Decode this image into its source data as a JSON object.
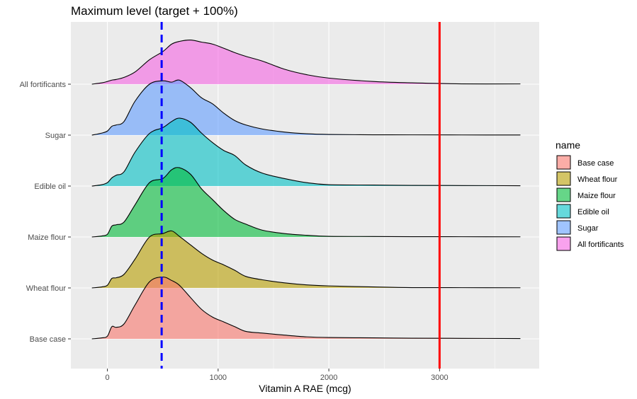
{
  "chart_data": {
    "type": "area",
    "subtype": "ridgeline-density",
    "title": "Maximum level (target + 100%)",
    "xlabel": "Vitamin A RAE (mcg)",
    "ylabel": "",
    "xlim": [
      -330,
      3900
    ],
    "x_ticks": [
      0,
      1000,
      2000,
      3000
    ],
    "x_tick_labels": [
      "0",
      "1000",
      "2000",
      "3000"
    ],
    "categories": [
      "Base case",
      "Wheat flour",
      "Maize flour",
      "Edible oil",
      "Sugar",
      "All fortificants"
    ],
    "grid": true,
    "reference_lines": [
      {
        "x": 490,
        "color": "#0000ff",
        "style": "dashed"
      },
      {
        "x": 3000,
        "color": "#ff0000",
        "style": "solid"
      }
    ],
    "legend": {
      "title": "name",
      "placement": "right",
      "entries": [
        "Base case",
        "Wheat flour",
        "Maize flour",
        "Edible oil",
        "Sugar",
        "All fortificants"
      ]
    },
    "series": [
      {
        "name": "Base case",
        "color": "#F8766D",
        "x": [
          -140,
          -50,
          0,
          40,
          80,
          150,
          250,
          380,
          500,
          580,
          650,
          750,
          850,
          950,
          1050,
          1150,
          1250,
          1400,
          1600,
          1800,
          2000,
          2400,
          2750,
          3200,
          3730
        ],
        "y": [
          0,
          0.03,
          0.08,
          0.36,
          0.34,
          0.44,
          1.0,
          1.68,
          1.82,
          1.72,
          1.58,
          1.22,
          0.87,
          0.64,
          0.5,
          0.36,
          0.22,
          0.17,
          0.11,
          0.06,
          0.04,
          0.03,
          0.02,
          0.015,
          0.01
        ]
      },
      {
        "name": "Wheat flour",
        "color": "#B79F00",
        "x": [
          -140,
          -50,
          0,
          40,
          80,
          150,
          250,
          380,
          500,
          580,
          650,
          750,
          850,
          950,
          1050,
          1150,
          1250,
          1400,
          1600,
          1800,
          2000,
          2400,
          2750,
          3200,
          3730
        ],
        "y": [
          0,
          0.03,
          0.08,
          0.28,
          0.3,
          0.4,
          0.85,
          1.5,
          1.6,
          1.68,
          1.52,
          1.27,
          1.02,
          0.82,
          0.68,
          0.52,
          0.34,
          0.24,
          0.15,
          0.09,
          0.06,
          0.03,
          0.01,
          0.008,
          0.005
        ]
      },
      {
        "name": "Maize flour",
        "color": "#00BA38",
        "x": [
          -140,
          -50,
          0,
          40,
          80,
          150,
          250,
          380,
          500,
          580,
          650,
          750,
          850,
          950,
          1050,
          1150,
          1250,
          1400,
          1600,
          1800,
          2000,
          2400,
          2750,
          3200,
          3730
        ],
        "y": [
          0,
          0.03,
          0.08,
          0.32,
          0.36,
          0.44,
          0.95,
          1.6,
          1.72,
          1.98,
          2.04,
          1.85,
          1.42,
          1.1,
          0.78,
          0.52,
          0.38,
          0.2,
          0.1,
          0.05,
          0.02,
          0.015,
          0.01,
          0.008,
          0.005
        ]
      },
      {
        "name": "Edible oil",
        "color": "#00BFC4",
        "x": [
          -140,
          -50,
          0,
          40,
          80,
          150,
          250,
          380,
          500,
          580,
          650,
          750,
          850,
          950,
          1050,
          1150,
          1250,
          1400,
          1600,
          1800,
          2000,
          2400,
          2750,
          3200,
          3730
        ],
        "y": [
          0,
          0.04,
          0.1,
          0.24,
          0.32,
          0.42,
          1.0,
          1.55,
          1.72,
          1.9,
          2.0,
          1.88,
          1.56,
          1.28,
          1.05,
          0.9,
          0.62,
          0.38,
          0.22,
          0.1,
          0.04,
          0.03,
          0.02,
          0.015,
          0.01
        ]
      },
      {
        "name": "Sugar",
        "color": "#619CFF",
        "x": [
          -140,
          -50,
          0,
          40,
          80,
          150,
          250,
          380,
          500,
          580,
          650,
          750,
          850,
          950,
          1050,
          1150,
          1250,
          1400,
          1600,
          1800,
          2000,
          2400,
          2750,
          3200,
          3730
        ],
        "y": [
          0,
          0.06,
          0.12,
          0.26,
          0.3,
          0.4,
          1.0,
          1.5,
          1.6,
          1.56,
          1.62,
          1.4,
          1.1,
          0.92,
          0.65,
          0.43,
          0.3,
          0.18,
          0.09,
          0.04,
          0.02,
          0.01,
          0.008,
          0.005,
          0.004
        ]
      },
      {
        "name": "All fortificants",
        "color": "#F564E3",
        "x": [
          -140,
          -50,
          0,
          40,
          80,
          150,
          250,
          380,
          500,
          580,
          650,
          750,
          850,
          950,
          1050,
          1150,
          1250,
          1400,
          1600,
          1800,
          2000,
          2400,
          2750,
          3200,
          3730
        ],
        "y": [
          0,
          0.04,
          0.08,
          0.12,
          0.14,
          0.2,
          0.36,
          0.72,
          0.96,
          1.18,
          1.26,
          1.3,
          1.24,
          1.18,
          1.06,
          0.93,
          0.82,
          0.68,
          0.44,
          0.28,
          0.18,
          0.08,
          0.04,
          0.01,
          0.008
        ]
      }
    ]
  }
}
